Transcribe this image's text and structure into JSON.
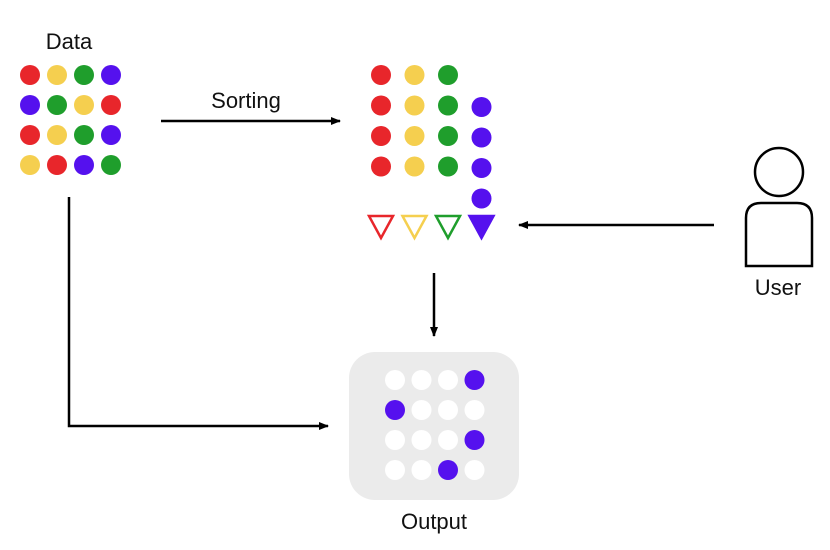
{
  "labels": {
    "data": "Data",
    "sorting": "Sorting",
    "user": "User",
    "output": "Output"
  },
  "colors": {
    "red": "#e8262b",
    "yellow": "#f5cf4f",
    "green": "#1f9e2c",
    "purple": "#5511ee",
    "output_bg": "#ebebeb",
    "empty": "#ffffff",
    "line": "#000000"
  },
  "data_grid": [
    [
      "red",
      "yellow",
      "green",
      "purple"
    ],
    [
      "purple",
      "green",
      "yellow",
      "red"
    ],
    [
      "red",
      "yellow",
      "green",
      "purple"
    ],
    [
      "yellow",
      "red",
      "purple",
      "green"
    ]
  ],
  "sorted_columns": [
    {
      "color": "red",
      "count": 4
    },
    {
      "color": "yellow",
      "count": 4
    },
    {
      "color": "green",
      "count": 4
    },
    {
      "color": "purple",
      "count": 4
    }
  ],
  "filters": [
    {
      "color": "red",
      "selected": false
    },
    {
      "color": "yellow",
      "selected": false
    },
    {
      "color": "green",
      "selected": false
    },
    {
      "color": "purple",
      "selected": true
    }
  ],
  "output_grid": [
    [
      "empty",
      "empty",
      "empty",
      "purple"
    ],
    [
      "purple",
      "empty",
      "empty",
      "empty"
    ],
    [
      "empty",
      "empty",
      "empty",
      "purple"
    ],
    [
      "empty",
      "empty",
      "purple",
      "empty"
    ]
  ],
  "icons": {
    "user": "user-icon",
    "arrowhead": "arrowhead-icon"
  }
}
